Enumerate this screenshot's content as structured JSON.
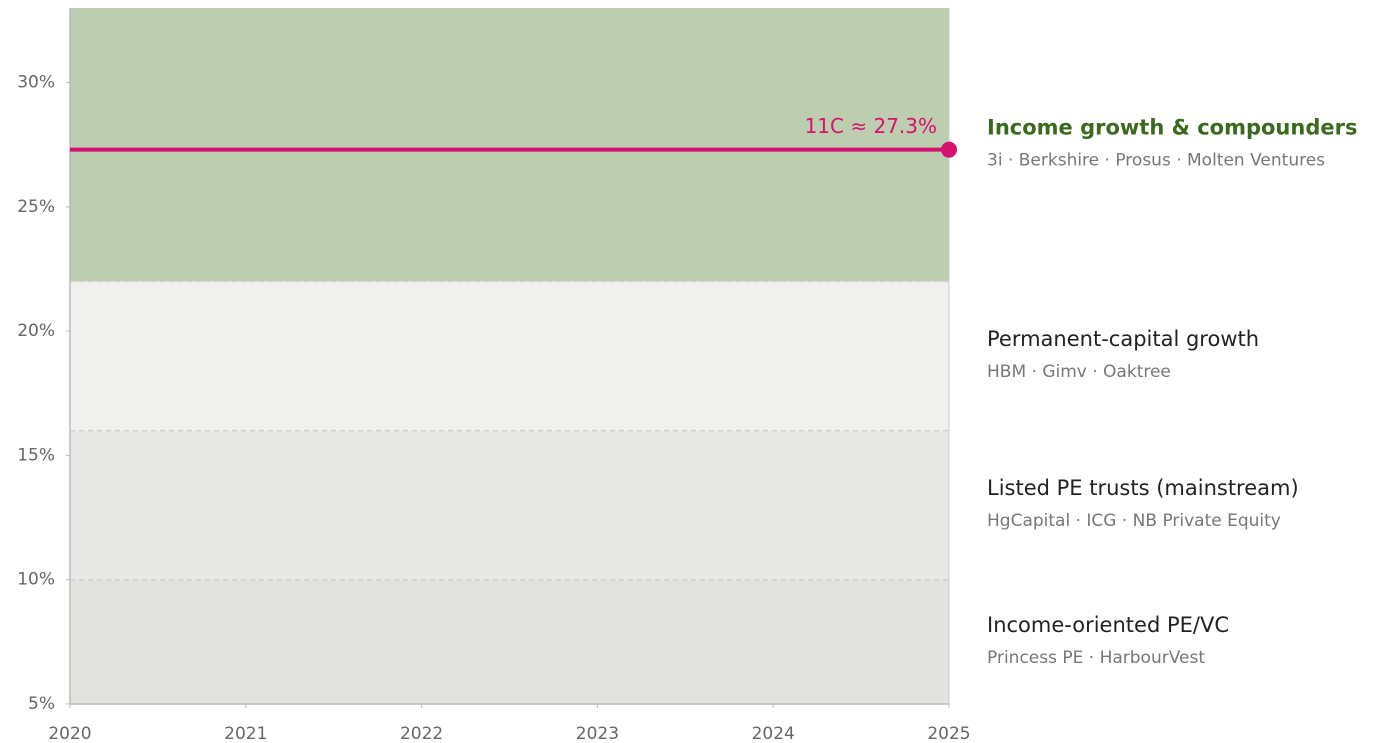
{
  "chart_data": {
    "type": "line",
    "xlim": [
      2020,
      2025
    ],
    "xticks": [
      2020,
      2021,
      2022,
      2023,
      2024,
      2025
    ],
    "ylim": [
      5,
      33
    ],
    "yticks": [
      {
        "value": 5,
        "label": "5%"
      },
      {
        "value": 10,
        "label": "10%"
      },
      {
        "value": 15,
        "label": "15%"
      },
      {
        "value": 20,
        "label": "20%"
      },
      {
        "value": 25,
        "label": "25%"
      },
      {
        "value": 30,
        "label": "30%"
      }
    ],
    "bands": [
      {
        "name": "Income-oriented PE/VC",
        "members": "Princess PE · HarbourVest",
        "from": 5,
        "to": 10,
        "color": "#e2e2df",
        "name_color": "#222222"
      },
      {
        "name": "Listed PE trusts (mainstream)",
        "members": "HgCapital · ICG · NB Private Equity",
        "from": 10,
        "to": 16,
        "color": "#e8e8e6",
        "name_color": "#222222"
      },
      {
        "name": "Permanent-capital growth",
        "members": "HBM · Gimv · Oaktree",
        "from": 16,
        "to": 22,
        "color": "#f0f0ee",
        "name_color": "#222222"
      },
      {
        "name": "Income growth & compounders",
        "members": "3i · Berkshire · Prosus · Molten Ventures",
        "from": 22,
        "to": 33,
        "color": "#bdcdb0",
        "name_color": "#3b6a1f"
      }
    ],
    "series": [
      {
        "name": "11C",
        "color": "#d6116f",
        "x": [
          2020,
          2025
        ],
        "values": [
          27.3,
          27.3
        ],
        "label": "11C ≈ 27.3%"
      }
    ]
  }
}
